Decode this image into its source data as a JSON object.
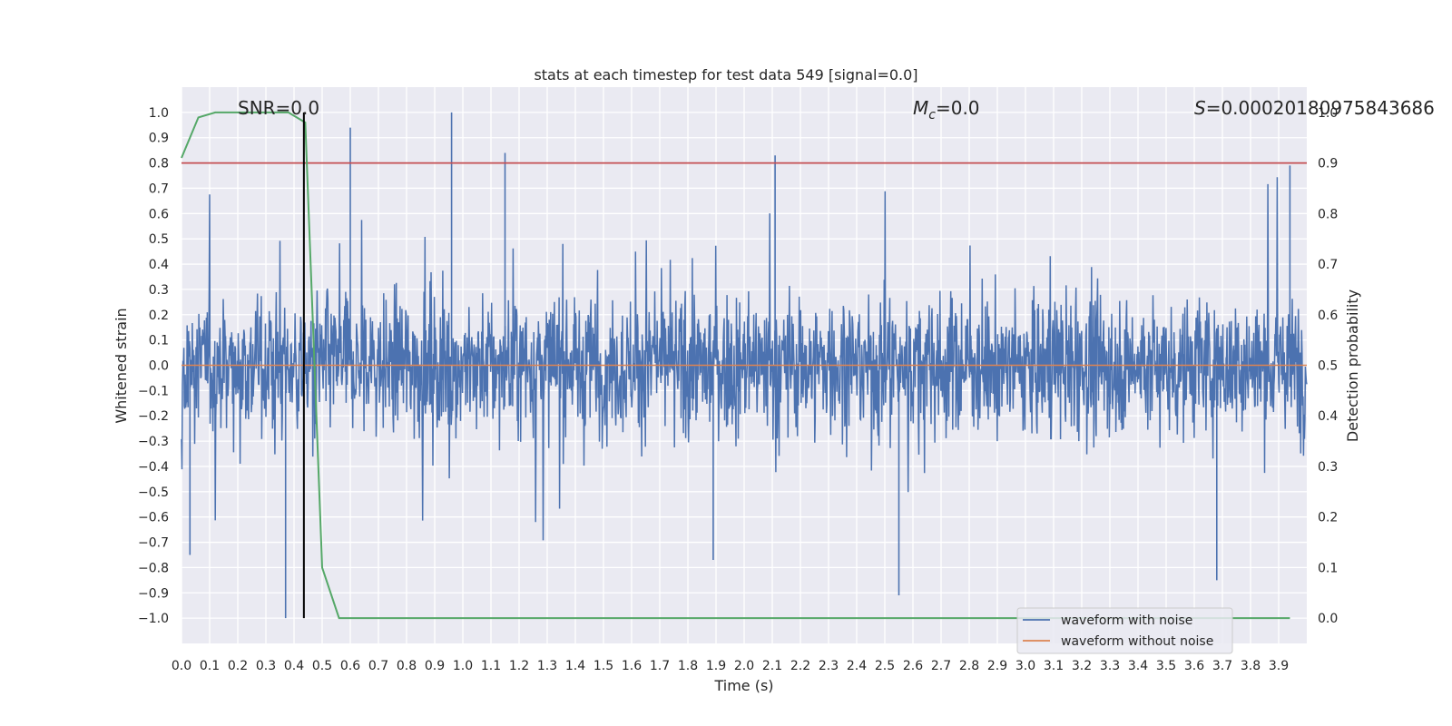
{
  "chart_data": {
    "type": "line",
    "title": "stats at each timestep for test data 549 [signal=0.0]",
    "xlabel": "Time (s)",
    "ylabel": "Whitened strain",
    "y2label": "Detection probability",
    "xlim": [
      0.0,
      4.0
    ],
    "ylim": [
      -1.1,
      1.1
    ],
    "y2lim": [
      -0.05,
      1.05
    ],
    "grid": true,
    "xticks": [
      "0.0",
      "0.1",
      "0.2",
      "0.3",
      "0.4",
      "0.5",
      "0.6",
      "0.7",
      "0.8",
      "0.9",
      "1.0",
      "1.1",
      "1.2",
      "1.3",
      "1.4",
      "1.5",
      "1.6",
      "1.7",
      "1.8",
      "1.9",
      "2.0",
      "2.1",
      "2.2",
      "2.3",
      "2.4",
      "2.5",
      "2.6",
      "2.7",
      "2.8",
      "2.9",
      "3.0",
      "3.1",
      "3.2",
      "3.3",
      "3.4",
      "3.5",
      "3.6",
      "3.7",
      "3.8",
      "3.9"
    ],
    "yticks": [
      "−1.0",
      "−0.9",
      "−0.8",
      "−0.7",
      "−0.6",
      "−0.5",
      "−0.4",
      "−0.3",
      "−0.2",
      "−0.1",
      "0.0",
      "0.1",
      "0.2",
      "0.3",
      "0.4",
      "0.5",
      "0.6",
      "0.7",
      "0.8",
      "0.9",
      "1.0"
    ],
    "y2ticks": [
      "0.0",
      "0.1",
      "0.2",
      "0.3",
      "0.4",
      "0.5",
      "0.6",
      "0.7",
      "0.8",
      "0.9",
      "1.0"
    ],
    "annotations": [
      {
        "name": "snr-annotation",
        "text": "SNR=0.0",
        "x": 0.2,
        "y": 1.0
      },
      {
        "name": "chirp-mass-annotation",
        "text": "=0.0",
        "symbol": "M",
        "subscript": "c",
        "x": 2.6,
        "y": 1.0
      },
      {
        "name": "significance-annotation",
        "text": "=0.00020180975843686",
        "symbol": "S",
        "x": 3.6,
        "y": 1.0
      }
    ],
    "series": [
      {
        "name": "waveform with noise",
        "color": "#4c72b0",
        "axis": "left",
        "description": "dense noise, mostly within ±0.4 with spikes",
        "peak_max": 1.0,
        "peak_min": -1.0
      },
      {
        "name": "waveform without noise",
        "color": "#dd8452",
        "axis": "left",
        "value": 0.0
      },
      {
        "name": "detection probability",
        "color": "#55a868",
        "axis": "right",
        "x": [
          0.0,
          0.06,
          0.12,
          0.19,
          0.25,
          0.31,
          0.38,
          0.44,
          0.5,
          0.56,
          0.62,
          0.69,
          0.75,
          0.81,
          0.88,
          0.94,
          1.0,
          1.5,
          2.0,
          2.5,
          3.0,
          3.5,
          3.94
        ],
        "y": [
          0.91,
          0.99,
          1.0,
          1.0,
          1.0,
          1.0,
          1.0,
          0.98,
          0.1,
          0.0,
          0.0,
          0.0,
          0.0,
          0.0,
          0.0,
          0.0,
          0.0,
          0.0,
          0.0,
          0.0,
          0.0,
          0.0,
          0.0
        ]
      }
    ],
    "hlines": [
      {
        "name": "threshold-line",
        "axis": "right",
        "value": 0.9,
        "color": "#c44e52"
      }
    ],
    "vlines": [
      {
        "name": "peak-time-line",
        "x": 0.435,
        "ymin": -1.0,
        "ymax": 1.0,
        "color": "#000000"
      }
    ],
    "legend": {
      "placement": "lower-right",
      "entries": [
        {
          "label": "waveform with noise",
          "color": "#4c72b0"
        },
        {
          "label": "waveform without noise",
          "color": "#dd8452"
        }
      ]
    }
  }
}
